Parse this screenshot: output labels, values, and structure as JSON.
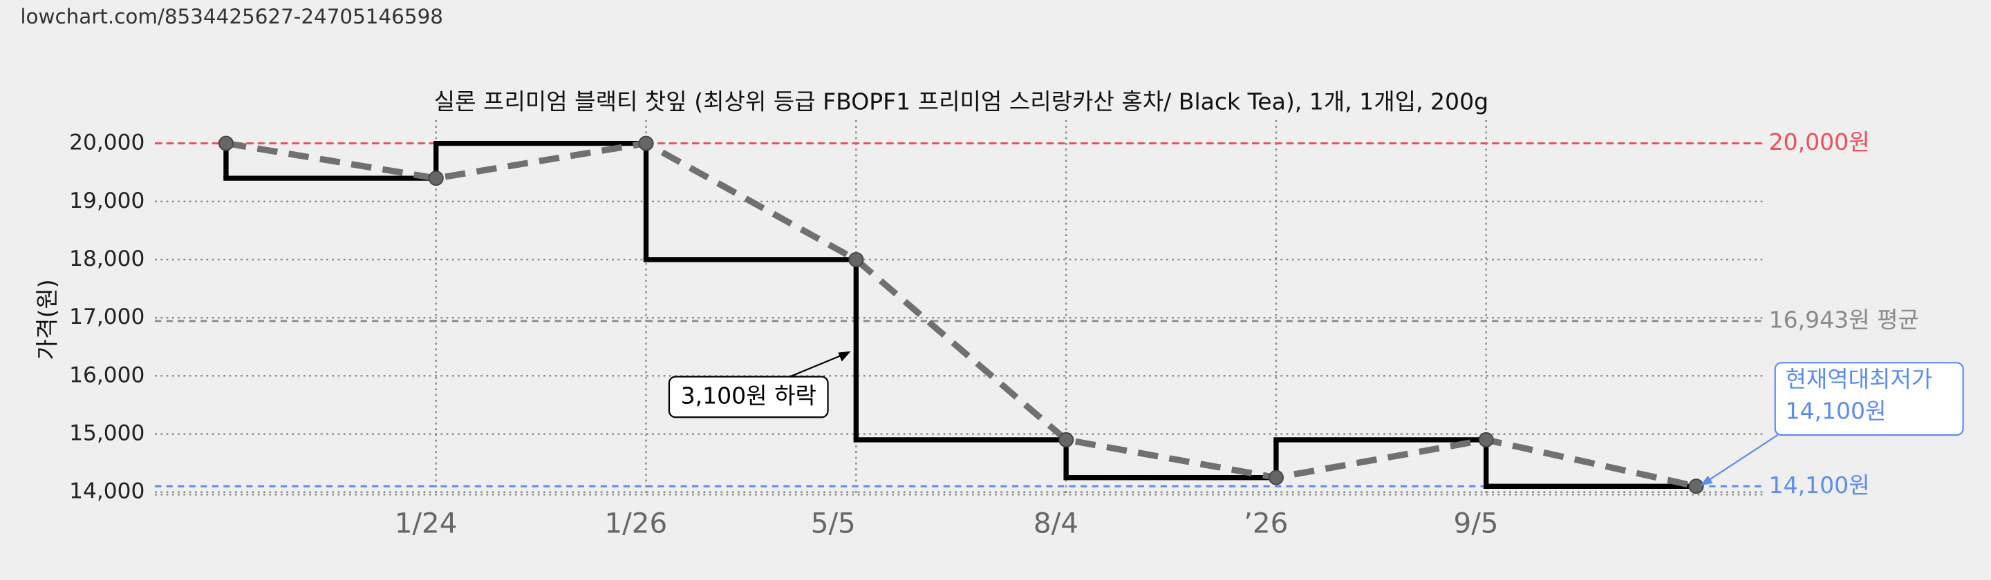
{
  "header": {
    "url": "lowchart.com/8534425627-24705146598"
  },
  "chart_data": {
    "type": "line",
    "title": "실론 프리미엄 블랙티 찻잎 (최상위 등급 FBOPF1 프리미엄 스리랑카산 홍차/ Black Tea), 1개, 1개입, 200g",
    "y_label": "가격(원)",
    "categories": [
      null,
      "1/24",
      "1/26",
      "5/5",
      "8/4",
      "’26",
      "9/5",
      null
    ],
    "series": [
      {
        "color": "#000000",
        "step_color": "#000000",
        "dash_color": "#707070",
        "values": [
          20000,
          19400,
          20000,
          18000,
          14900,
          14250,
          14900,
          14100
        ]
      }
    ],
    "ylim": [
      13900,
      20400
    ],
    "yticks": [
      {
        "value": 14000,
        "label": "14,000"
      },
      {
        "value": 15000,
        "label": "15,000"
      },
      {
        "value": 16000,
        "label": "16,000"
      },
      {
        "value": 17000,
        "label": "17,000"
      },
      {
        "value": 18000,
        "label": "18,000"
      },
      {
        "value": 19000,
        "label": "19,000"
      },
      {
        "value": 20000,
        "label": "20,000"
      }
    ],
    "grid": true,
    "reference_lines": [
      {
        "value": 20000,
        "label": "20,000원",
        "color": "#ee4f5a"
      },
      {
        "value": 16943,
        "label": "16,943원 평균",
        "color": "#8a8a8a"
      },
      {
        "value": 14100,
        "label": "14,100원",
        "color": "#5b8def"
      }
    ],
    "annotations": [
      {
        "text": "3,100원 하락",
        "color": "#000000"
      },
      {
        "lines": [
          "현재역대최저가",
          "14,100원"
        ],
        "color": "#5b8def"
      }
    ]
  }
}
